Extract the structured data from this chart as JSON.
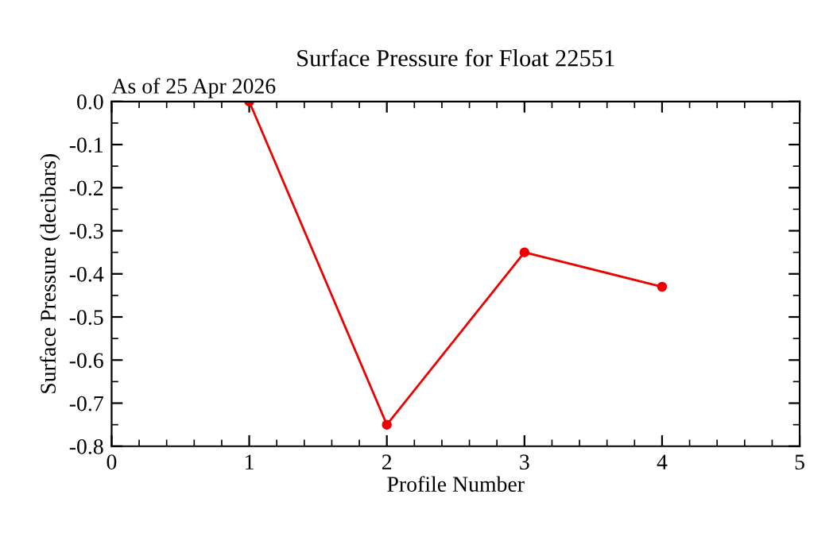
{
  "chart_data": {
    "type": "line",
    "title": "Surface Pressure for Float 22551",
    "xlabel": "Profile Number",
    "ylabel": "Surface Pressure (decibars)",
    "annotations": [
      "As of 25 Apr 2026"
    ],
    "x": [
      1,
      2,
      3,
      4
    ],
    "series": [
      {
        "color": "#ee0000",
        "values": [
          0.0,
          -0.75,
          -0.35,
          -0.43
        ]
      }
    ],
    "xlim": [
      0,
      5
    ],
    "xticks": [
      0,
      1,
      2,
      3,
      4,
      5
    ],
    "ylim": [
      -0.8,
      0.0
    ],
    "yticks": [
      {
        "value": 0.0,
        "label": "0.0"
      },
      {
        "value": -0.1,
        "label": "-0.1"
      },
      {
        "value": -0.2,
        "label": "-0.2"
      },
      {
        "value": -0.3,
        "label": "-0.3"
      },
      {
        "value": -0.4,
        "label": "-0.4"
      },
      {
        "value": -0.5,
        "label": "-0.5"
      },
      {
        "value": -0.6,
        "label": "-0.6"
      },
      {
        "value": -0.7,
        "label": "-0.7"
      },
      {
        "value": -0.8,
        "label": "-0.8"
      }
    ],
    "marker": "circle",
    "line_style": "solid",
    "grid": false,
    "legend": false
  }
}
